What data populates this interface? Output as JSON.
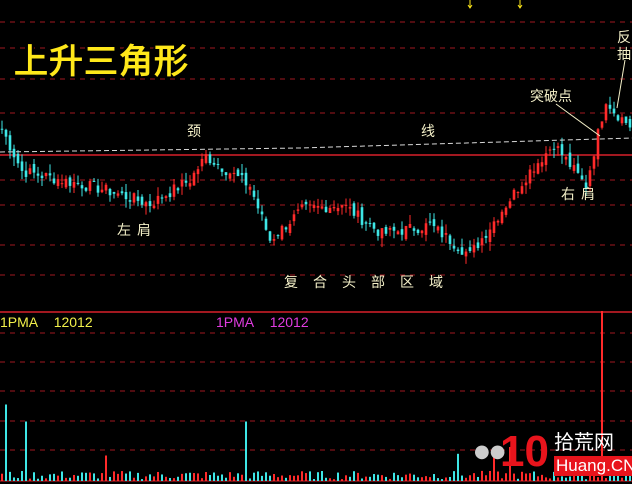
{
  "chart_data": {
    "type": "candlestick",
    "title": "上升三角形",
    "price_keypoints": [
      [
        0,
        61
      ],
      [
        5,
        47
      ],
      [
        15,
        44
      ],
      [
        25,
        41
      ],
      [
        37,
        36
      ],
      [
        47,
        44
      ],
      [
        51,
        52
      ],
      [
        62,
        42
      ],
      [
        67,
        24
      ],
      [
        75,
        34
      ],
      [
        85,
        36
      ],
      [
        95,
        26
      ],
      [
        107,
        29
      ],
      [
        117,
        19
      ],
      [
        125,
        34
      ],
      [
        132,
        47
      ],
      [
        138,
        56
      ],
      [
        146,
        42
      ],
      [
        151,
        71
      ],
      [
        153,
        67
      ],
      [
        157,
        62
      ]
    ],
    "volume_spikes": [
      [
        1,
        45
      ],
      [
        6,
        35
      ],
      [
        26,
        15
      ],
      [
        61,
        35
      ],
      [
        114,
        16
      ],
      [
        150,
        100
      ],
      [
        127,
        20
      ],
      [
        123,
        14
      ]
    ],
    "annotations": {
      "neck_1": "颈",
      "neck_2": "线",
      "left_shoulder": "左肩",
      "head_zone": "复合头部区域",
      "right_shoulder": "右肩",
      "breakout": "突破点",
      "pullback": "反抽"
    },
    "legend": [
      {
        "label": "1PMA",
        "value": "12012",
        "color": "#f2f04a"
      },
      {
        "label": "1PMA",
        "value": "12012",
        "color": "#e03ce0"
      }
    ],
    "grid": true,
    "colors": {
      "up": "#ff2a2a",
      "down": "#3ee6e6",
      "grid": "#a01820",
      "neckline": "#d8d8d8",
      "resistance": "#d8202a",
      "title": "#ffe81a"
    }
  },
  "watermark": {
    "number": "10",
    "site": "拾荒网",
    "domain": "Huang.CN"
  }
}
